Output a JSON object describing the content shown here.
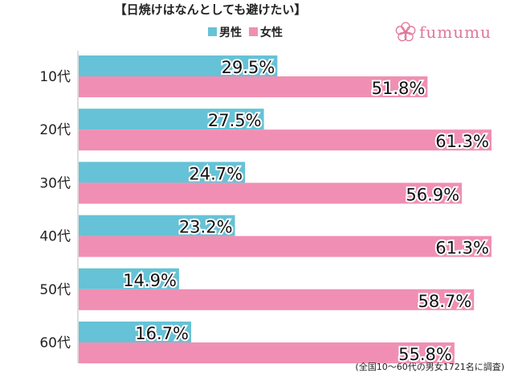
{
  "brand": {
    "name": "fumumu",
    "color": "#e0779d"
  },
  "chart_data": {
    "type": "bar",
    "orientation": "horizontal",
    "title": "【日焼けはなんとしても避けたい】",
    "categories": [
      "10代",
      "20代",
      "30代",
      "40代",
      "50代",
      "60代"
    ],
    "series": [
      {
        "name": "男性",
        "color": "#66c2d6",
        "values": [
          29.5,
          27.5,
          24.7,
          23.2,
          14.9,
          16.7
        ]
      },
      {
        "name": "女性",
        "color": "#f08fb3",
        "values": [
          51.8,
          61.3,
          56.9,
          61.3,
          58.7,
          55.8
        ]
      }
    ],
    "value_suffix": "%",
    "xlim": [
      0,
      80
    ],
    "legend_position": "top-center",
    "grid": false,
    "footnote": "(全国10〜60代の男女1721名に調査)"
  }
}
